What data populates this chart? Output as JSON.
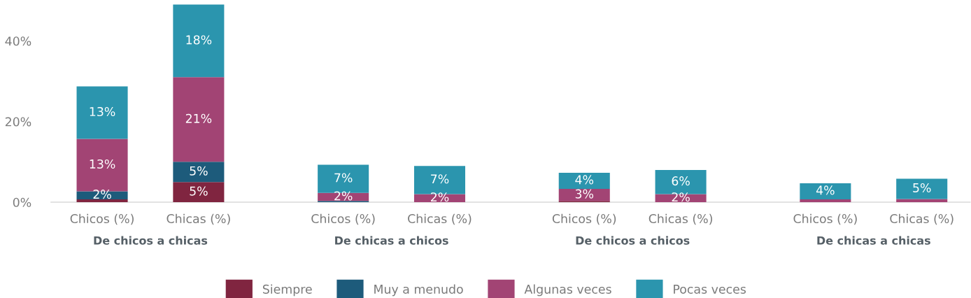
{
  "chart_data": {
    "type": "bar",
    "stacked": true,
    "categories": [
      "Chicos (%)",
      "Chicas (%)",
      "Chicos (%)",
      "Chicas (%)",
      "Chicos (%)",
      "Chicas (%)",
      "Chicos (%)",
      "Chicas (%)"
    ],
    "series": [
      {
        "name": "Siempre",
        "color": "#802540",
        "values": [
          0.7,
          5,
          null,
          null,
          0.3,
          null,
          null,
          null
        ],
        "value_labels": [
          null,
          "5%",
          null,
          null,
          null,
          null,
          null,
          null
        ]
      },
      {
        "name": "Muy a menudo",
        "color": "#1d5b7b",
        "values": [
          2,
          5,
          0.3,
          null,
          null,
          null,
          null,
          null
        ],
        "value_labels": [
          "2%",
          "5%",
          null,
          null,
          null,
          null,
          null,
          null
        ]
      },
      {
        "name": "Algunas veces",
        "color": "#a24474",
        "values": [
          13,
          21,
          2,
          2,
          3,
          2,
          0.7,
          0.8
        ],
        "value_labels": [
          "13%",
          "21%",
          "2%",
          "2%",
          "3%",
          "2%",
          null,
          null
        ]
      },
      {
        "name": "Pocas veces",
        "color": "#2b95ae",
        "values": [
          13,
          18,
          7,
          7,
          4,
          6,
          4,
          5
        ],
        "value_labels": [
          "13%",
          "18%",
          "7%",
          "7%",
          "4%",
          "6%",
          "4%",
          "5%"
        ]
      }
    ],
    "ylim": [
      0,
      50
    ],
    "yticks": [
      {
        "value": 0,
        "label": "0%"
      },
      {
        "value": 20,
        "label": "20%"
      },
      {
        "value": 40,
        "label": "40%"
      }
    ],
    "grid": false,
    "legend": "bottom",
    "annotations": [
      "De chicos a chicas",
      "De chicas a chicos",
      "De chicos a chicos",
      "De chicas a chicas"
    ]
  }
}
